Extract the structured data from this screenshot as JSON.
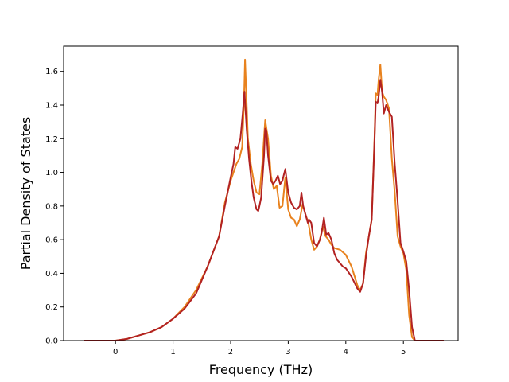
{
  "chart_data": {
    "type": "line",
    "title": "",
    "xlabel": "Frequency (THz)",
    "ylabel": "Partial Density of States",
    "xlim": [
      -0.9,
      5.95
    ],
    "ylim": [
      0.0,
      1.75
    ],
    "xticks": [
      0,
      1,
      2,
      3,
      4,
      5
    ],
    "xtick_labels": [
      "0",
      "1",
      "2",
      "3",
      "4",
      "5"
    ],
    "yticks": [
      0.0,
      0.2,
      0.4,
      0.6,
      0.8,
      1.0,
      1.2,
      1.4,
      1.6
    ],
    "ytick_labels": [
      "0.0",
      "0.2",
      "0.4",
      "0.6",
      "0.8",
      "1.0",
      "1.2",
      "1.4",
      "1.6"
    ],
    "grid": false,
    "legend": "none",
    "series": [
      {
        "color": "#e8821e",
        "x": [
          -0.55,
          0.0,
          0.2,
          0.4,
          0.6,
          0.8,
          1.0,
          1.2,
          1.4,
          1.6,
          1.8,
          1.9,
          2.0,
          2.1,
          2.15,
          2.2,
          2.23,
          2.25,
          2.3,
          2.35,
          2.4,
          2.45,
          2.5,
          2.55,
          2.6,
          2.65,
          2.7,
          2.75,
          2.8,
          2.85,
          2.9,
          2.95,
          3.0,
          3.05,
          3.1,
          3.15,
          3.2,
          3.25,
          3.3,
          3.35,
          3.4,
          3.45,
          3.5,
          3.55,
          3.6,
          3.65,
          3.7,
          3.75,
          3.8,
          3.9,
          4.0,
          4.1,
          4.2,
          4.25,
          4.3,
          4.35,
          4.4,
          4.45,
          4.5,
          4.52,
          4.55,
          4.57,
          4.6,
          4.63,
          4.66,
          4.7,
          4.75,
          4.8,
          4.85,
          4.9,
          4.95,
          5.0,
          5.05,
          5.1,
          5.15,
          5.2,
          5.3,
          5.7
        ],
        "y": [
          0.0,
          0.0,
          0.01,
          0.03,
          0.05,
          0.08,
          0.13,
          0.2,
          0.3,
          0.44,
          0.62,
          0.82,
          0.95,
          1.05,
          1.08,
          1.15,
          1.4,
          1.67,
          1.2,
          1.05,
          0.95,
          0.88,
          0.87,
          1.05,
          1.31,
          1.2,
          0.98,
          0.9,
          0.92,
          0.79,
          0.8,
          0.97,
          0.78,
          0.73,
          0.72,
          0.68,
          0.72,
          0.81,
          0.75,
          0.7,
          0.6,
          0.54,
          0.56,
          0.6,
          0.68,
          0.62,
          0.6,
          0.57,
          0.55,
          0.54,
          0.51,
          0.44,
          0.33,
          0.3,
          0.34,
          0.52,
          0.62,
          0.72,
          1.22,
          1.47,
          1.46,
          1.55,
          1.64,
          1.48,
          1.45,
          1.43,
          1.38,
          1.08,
          0.88,
          0.62,
          0.56,
          0.52,
          0.42,
          0.15,
          0.02,
          0.0,
          0.0,
          0.0
        ]
      },
      {
        "color": "#b22222",
        "x": [
          -0.55,
          0.0,
          0.2,
          0.4,
          0.6,
          0.8,
          1.0,
          1.2,
          1.4,
          1.6,
          1.8,
          1.9,
          2.0,
          2.05,
          2.08,
          2.12,
          2.17,
          2.21,
          2.24,
          2.28,
          2.32,
          2.36,
          2.4,
          2.45,
          2.48,
          2.5,
          2.53,
          2.58,
          2.6,
          2.62,
          2.65,
          2.7,
          2.74,
          2.78,
          2.82,
          2.86,
          2.9,
          2.92,
          2.95,
          3.0,
          3.05,
          3.1,
          3.15,
          3.2,
          3.23,
          3.26,
          3.3,
          3.34,
          3.36,
          3.4,
          3.45,
          3.5,
          3.55,
          3.58,
          3.62,
          3.66,
          3.7,
          3.75,
          3.8,
          3.85,
          3.9,
          3.95,
          4.0,
          4.1,
          4.2,
          4.25,
          4.3,
          4.35,
          4.4,
          4.45,
          4.5,
          4.52,
          4.55,
          4.57,
          4.6,
          4.63,
          4.66,
          4.7,
          4.75,
          4.8,
          4.85,
          4.9,
          4.95,
          5.0,
          5.05,
          5.1,
          5.15,
          5.2,
          5.3,
          5.7
        ],
        "y": [
          0.0,
          0.0,
          0.01,
          0.03,
          0.05,
          0.08,
          0.13,
          0.19,
          0.28,
          0.44,
          0.62,
          0.8,
          0.97,
          1.05,
          1.15,
          1.14,
          1.2,
          1.35,
          1.48,
          1.25,
          1.08,
          0.95,
          0.85,
          0.78,
          0.77,
          0.8,
          0.85,
          1.1,
          1.26,
          1.25,
          1.1,
          0.95,
          0.93,
          0.95,
          0.98,
          0.93,
          0.95,
          0.98,
          1.02,
          0.88,
          0.82,
          0.79,
          0.78,
          0.8,
          0.88,
          0.8,
          0.75,
          0.7,
          0.72,
          0.7,
          0.58,
          0.56,
          0.6,
          0.64,
          0.73,
          0.63,
          0.64,
          0.6,
          0.52,
          0.48,
          0.46,
          0.44,
          0.43,
          0.38,
          0.31,
          0.29,
          0.34,
          0.5,
          0.62,
          0.72,
          1.2,
          1.42,
          1.41,
          1.45,
          1.55,
          1.48,
          1.35,
          1.4,
          1.36,
          1.33,
          1.05,
          0.83,
          0.58,
          0.53,
          0.47,
          0.3,
          0.08,
          0.0,
          0.0,
          0.0
        ]
      }
    ]
  }
}
